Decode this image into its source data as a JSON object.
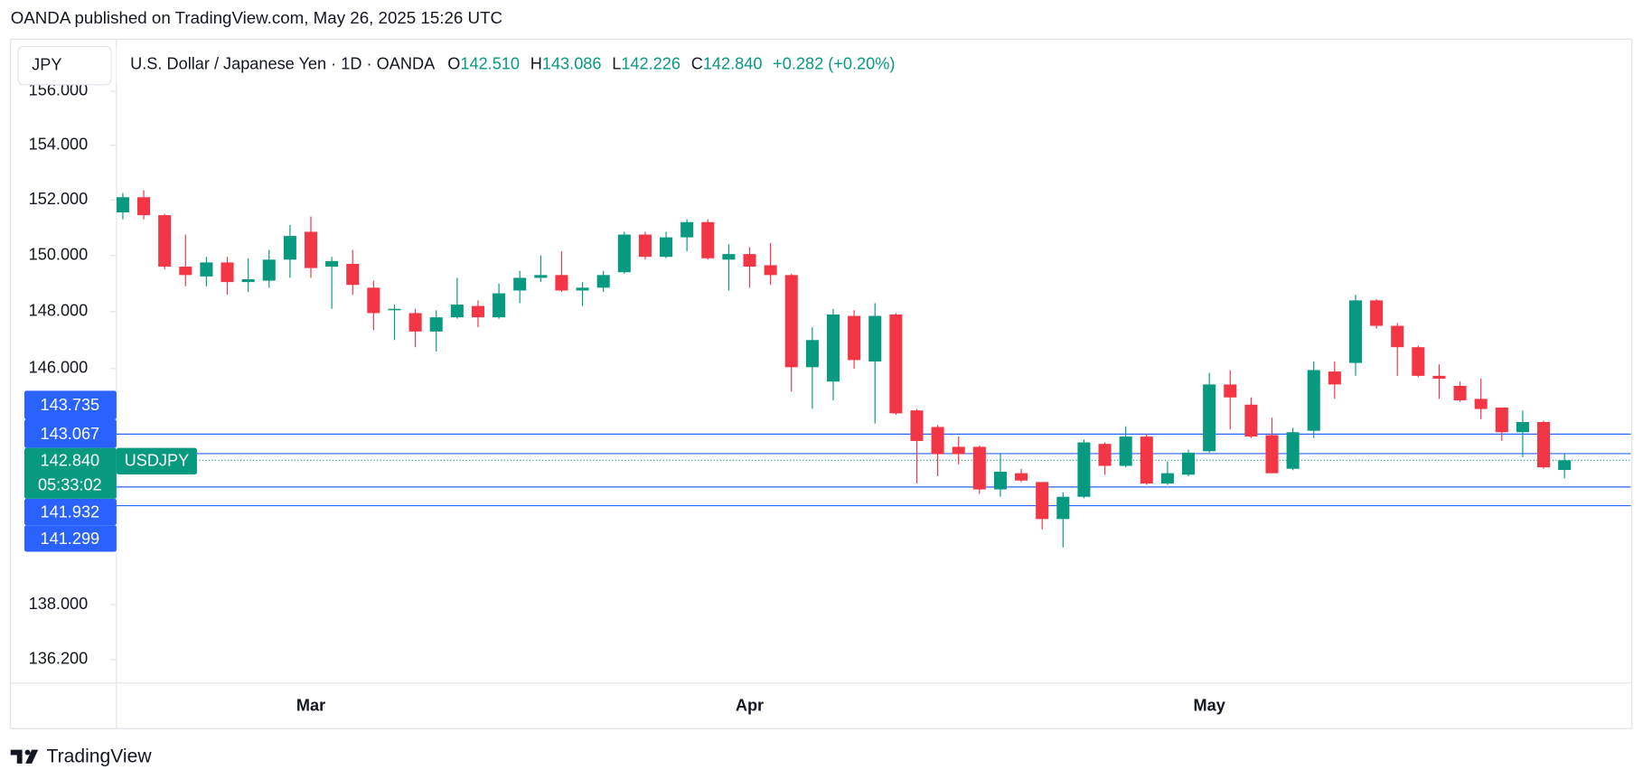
{
  "header": "OANDA published on TradingView.com, May 26, 2025 15:26 UTC",
  "footer": "TradingView",
  "chart_data": {
    "type": "candlestick",
    "symbol_box": "JPY",
    "title": "U.S. Dollar / Japanese Yen · 1D · OANDA",
    "ohlc_legend": [
      {
        "key": "O",
        "value": "142.510"
      },
      {
        "key": "H",
        "value": "143.086"
      },
      {
        "key": "L",
        "value": "142.226"
      },
      {
        "key": "C",
        "value": "142.840"
      }
    ],
    "change": "+0.282 (+0.20%)",
    "categories": [
      null,
      null,
      null,
      null,
      null,
      null,
      null,
      null,
      null,
      "Mar",
      null,
      null,
      null,
      null,
      null,
      null,
      null,
      null,
      null,
      null,
      null,
      null,
      null,
      null,
      null,
      null,
      null,
      null,
      null,
      null,
      "Apr",
      null,
      null,
      null,
      null,
      null,
      null,
      null,
      null,
      null,
      null,
      null,
      null,
      null,
      null,
      null,
      null,
      null,
      null,
      null,
      null,
      null,
      "May",
      null,
      null,
      null,
      null,
      null,
      null,
      null,
      null,
      null,
      null,
      null,
      null,
      null,
      null,
      null,
      null,
      null
    ],
    "open": [
      151.55,
      152.1,
      151.45,
      149.6,
      149.25,
      149.75,
      149.05,
      149.1,
      149.85,
      150.85,
      149.6,
      149.7,
      148.85,
      148.05,
      147.95,
      147.3,
      147.8,
      148.2,
      147.8,
      148.75,
      149.2,
      149.3,
      148.75,
      148.85,
      149.4,
      150.75,
      149.95,
      150.65,
      151.2,
      149.85,
      150.05,
      149.65,
      149.3,
      146.05,
      145.55,
      147.85,
      146.25,
      147.9,
      144.55,
      143.98,
      143.3,
      143.3,
      141.85,
      142.4,
      142.1,
      140.85,
      141.6,
      143.4,
      142.65,
      143.65,
      142.05,
      142.35,
      143.15,
      145.45,
      144.75,
      143.7,
      142.55,
      143.85,
      145.9,
      146.2,
      148.4,
      147.5,
      146.75,
      145.75,
      145.4,
      144.95,
      144.65,
      143.8,
      144.15,
      142.51
    ],
    "high": [
      152.25,
      152.35,
      151.5,
      150.75,
      149.95,
      149.95,
      149.9,
      150.2,
      151.1,
      151.4,
      149.95,
      150.2,
      149.1,
      148.25,
      148.1,
      148.05,
      149.2,
      148.4,
      149.0,
      149.45,
      150.0,
      150.15,
      149.05,
      149.45,
      150.85,
      150.85,
      150.85,
      151.3,
      151.3,
      150.4,
      150.3,
      150.45,
      149.35,
      147.45,
      148.1,
      148.05,
      148.3,
      147.95,
      144.6,
      144.05,
      143.65,
      143.35,
      143.05,
      142.55,
      142.1,
      141.75,
      143.55,
      143.45,
      144.0,
      143.75,
      142.8,
      143.2,
      145.85,
      145.95,
      145.0,
      144.3,
      143.95,
      146.25,
      146.25,
      148.6,
      148.45,
      147.6,
      146.8,
      146.15,
      145.55,
      145.65,
      144.65,
      144.55,
      144.2,
      143.086
    ],
    "low": [
      151.3,
      151.3,
      149.5,
      148.9,
      148.9,
      148.6,
      148.7,
      148.85,
      149.2,
      149.2,
      148.1,
      148.6,
      147.35,
      147.0,
      146.75,
      146.6,
      147.75,
      147.45,
      147.75,
      148.3,
      149.05,
      148.7,
      148.2,
      148.7,
      149.35,
      149.85,
      149.9,
      150.15,
      149.85,
      148.75,
      148.85,
      148.95,
      145.2,
      144.6,
      144.9,
      146.0,
      144.1,
      144.4,
      142.05,
      142.3,
      142.7,
      141.7,
      141.6,
      142.1,
      140.5,
      139.9,
      141.55,
      142.35,
      142.6,
      142.0,
      142.0,
      142.3,
      143.1,
      143.9,
      143.6,
      142.4,
      142.5,
      143.6,
      144.95,
      145.75,
      147.4,
      145.75,
      145.7,
      144.95,
      144.85,
      144.25,
      143.5,
      142.95,
      142.55,
      142.226
    ],
    "close": [
      152.1,
      151.45,
      149.6,
      149.3,
      149.75,
      149.05,
      149.15,
      149.85,
      150.7,
      149.55,
      149.8,
      148.95,
      147.95,
      148.1,
      147.3,
      147.8,
      148.25,
      147.8,
      148.65,
      149.2,
      149.3,
      148.75,
      148.85,
      149.3,
      150.75,
      149.95,
      150.65,
      151.2,
      149.9,
      150.05,
      149.6,
      149.3,
      146.05,
      147.0,
      147.9,
      146.3,
      147.85,
      144.45,
      143.5,
      143.05,
      143.05,
      141.85,
      142.45,
      142.15,
      140.85,
      141.6,
      143.45,
      142.65,
      143.65,
      142.05,
      142.4,
      143.1,
      145.45,
      145.0,
      143.65,
      142.4,
      143.8,
      145.95,
      145.45,
      148.4,
      147.5,
      146.75,
      145.75,
      145.65,
      144.9,
      144.6,
      143.8,
      144.15,
      142.6,
      142.84
    ],
    "up_color": "#089981",
    "down_color": "#f23645",
    "log": true,
    "ylim": [
      135.44,
      157.95
    ],
    "yticks": [
      {
        "value": 156,
        "label": "156.000"
      },
      {
        "value": 154,
        "label": "154.000"
      },
      {
        "value": 152,
        "label": "152.000"
      },
      {
        "value": 150,
        "label": "150.000"
      },
      {
        "value": 148,
        "label": "148.000"
      },
      {
        "value": 146,
        "label": "146.000"
      },
      {
        "value": 138,
        "label": "138.000"
      },
      {
        "value": 136.2,
        "label": "136.200"
      }
    ],
    "price_lines": [
      {
        "value": 143.735,
        "label": "143.735"
      },
      {
        "value": 143.067,
        "label": "143.067"
      },
      {
        "value": 141.932,
        "label": "141.932"
      },
      {
        "value": 141.299,
        "label": "141.299"
      }
    ],
    "price_line_color": "#2962ff",
    "last_price": {
      "value": 142.84,
      "label": "142.840",
      "name": "USDJPY",
      "countdown": "05:33:02"
    }
  }
}
